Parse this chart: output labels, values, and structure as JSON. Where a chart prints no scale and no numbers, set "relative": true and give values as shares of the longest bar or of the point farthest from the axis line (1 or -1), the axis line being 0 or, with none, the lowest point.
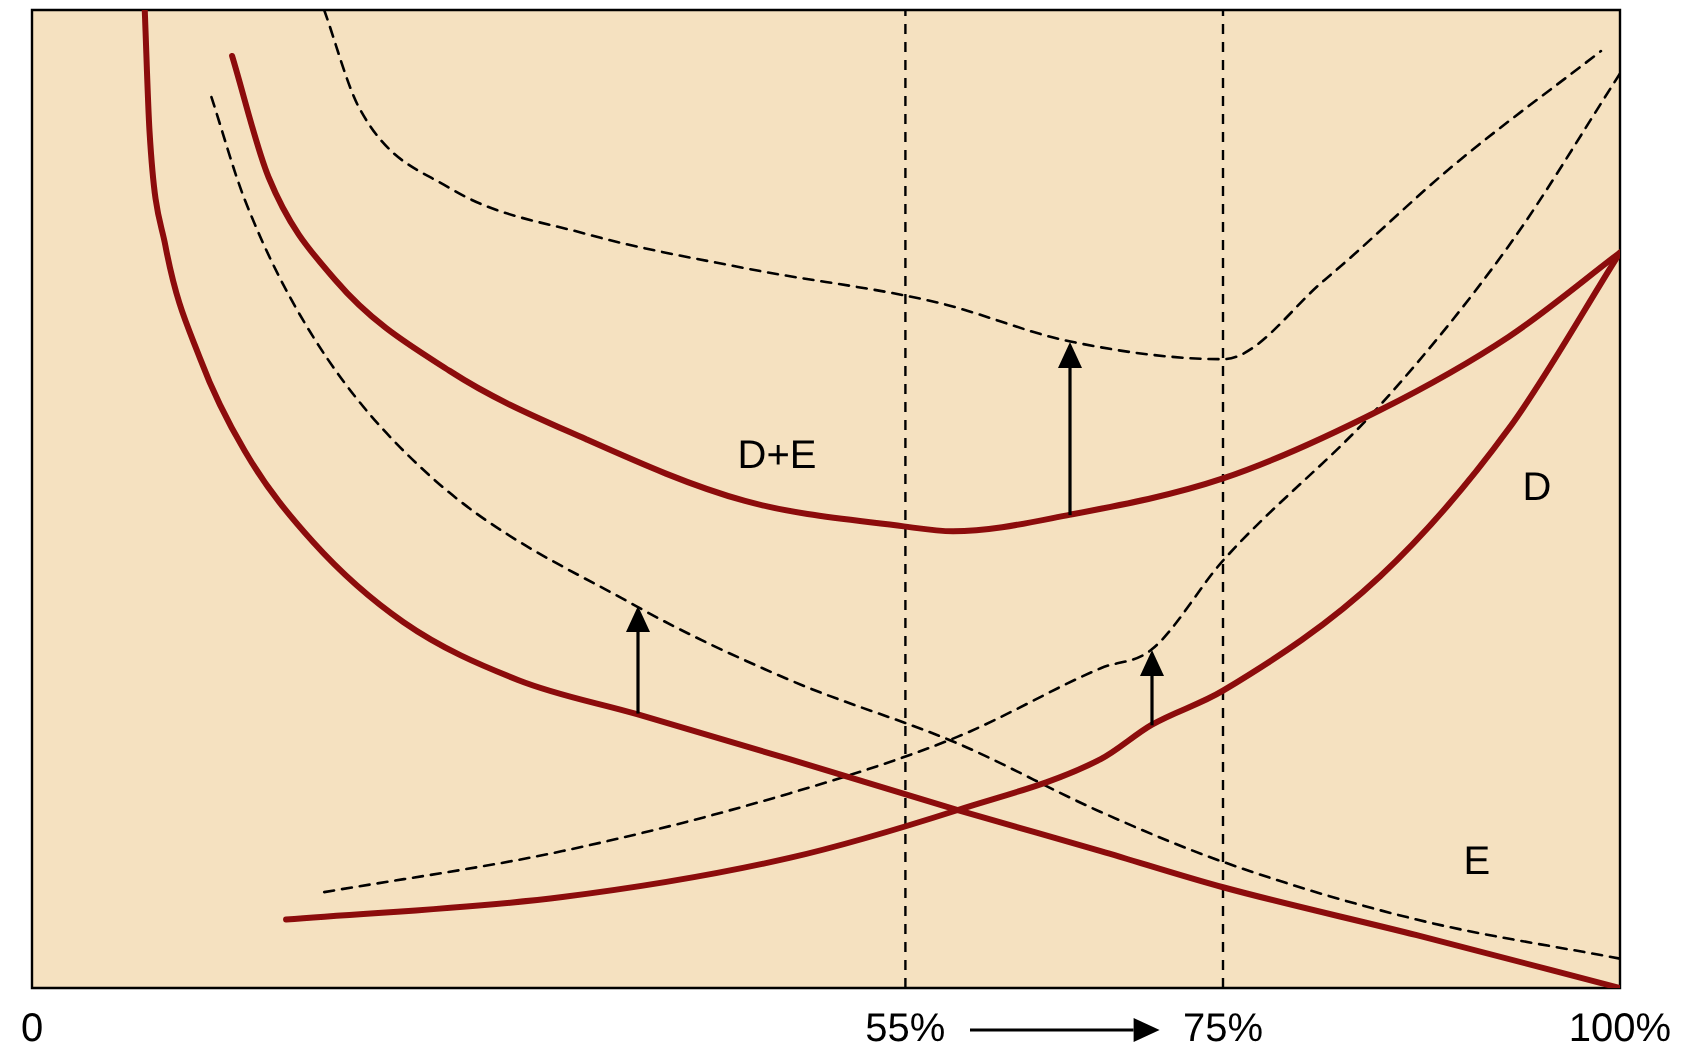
{
  "chart_data": {
    "type": "line",
    "relative": true,
    "xlim": [
      0,
      100
    ],
    "xticks": [
      0,
      {
        "value": 55,
        "label": "55%"
      },
      {
        "value": 75,
        "label": "75%"
      },
      {
        "value": 100,
        "label": "100%"
      }
    ],
    "grid": false,
    "legend": false,
    "marker": "none",
    "series": [
      {
        "name": "E",
        "color": "#8c0c0c",
        "line_style": "solid",
        "x": [
          7.1,
          7.4,
          8.4,
          10.6,
          13.4,
          17.7,
          23.4,
          30.6,
          38.1,
          47.7,
          58.3,
          67.3,
          75,
          87.2,
          100
        ],
        "values": [
          1.0,
          0.876,
          0.759,
          0.643,
          0.549,
          0.456,
          0.374,
          0.315,
          0.28,
          0.234,
          0.182,
          0.14,
          0.103,
          0.054,
          0
        ]
      },
      {
        "name": "D",
        "color": "#8c0c0c",
        "line_style": "solid",
        "x": [
          16,
          33.4,
          47.7,
          58.3,
          67.3,
          70.5,
          75,
          84.9,
          93,
          100
        ],
        "values": [
          0.07,
          0.093,
          0.133,
          0.182,
          0.234,
          0.269,
          0.304,
          0.421,
          0.572,
          0.752
        ]
      },
      {
        "name": "D+E",
        "color": "#8c0c0c",
        "line_style": "solid",
        "x": [
          12.6,
          14.9,
          19.1,
          26.3,
          34.9,
          44.9,
          54.9,
          58,
          65.4,
          75,
          84.9,
          93,
          100
        ],
        "values": [
          0.953,
          0.829,
          0.724,
          0.631,
          0.561,
          0.498,
          0.472,
          0.467,
          0.484,
          0.521,
          0.591,
          0.666,
          0.752
        ]
      },
      {
        "color": "#000000",
        "line_style": "dashed",
        "x": [
          11.3,
          13.4,
          17.7,
          24.9,
          38.1,
          47.7,
          58.3,
          67.3,
          75,
          87.2,
          100
        ],
        "values": [
          0.911,
          0.806,
          0.666,
          0.526,
          0.39,
          0.315,
          0.25,
          0.18,
          0.129,
          0.07,
          0.03
        ]
      },
      {
        "color": "#000000",
        "line_style": "dashed",
        "x": [
          18.4,
          33.4,
          47.7,
          58.3,
          67.3,
          70.5,
          75,
          84.9,
          93,
          100
        ],
        "values": [
          0.098,
          0.14,
          0.199,
          0.257,
          0.327,
          0.346,
          0.437,
          0.596,
          0.759,
          0.935
        ]
      },
      {
        "color": "#000000",
        "line_style": "dashed",
        "x": [
          18.4,
          20.6,
          26.3,
          34.9,
          44.9,
          57,
          65.4,
          75,
          81.4,
          89.5,
          98.8
        ],
        "values": [
          1.0,
          0.9,
          0.818,
          0.771,
          0.736,
          0.701,
          0.661,
          0.643,
          0.724,
          0.841,
          0.958
        ]
      }
    ],
    "ref_lines": [
      {
        "axis": "x",
        "value": 55,
        "color": "#000000",
        "line_style": "dashed"
      },
      {
        "axis": "x",
        "value": 75,
        "color": "#000000",
        "line_style": "dashed"
      }
    ]
  }
}
